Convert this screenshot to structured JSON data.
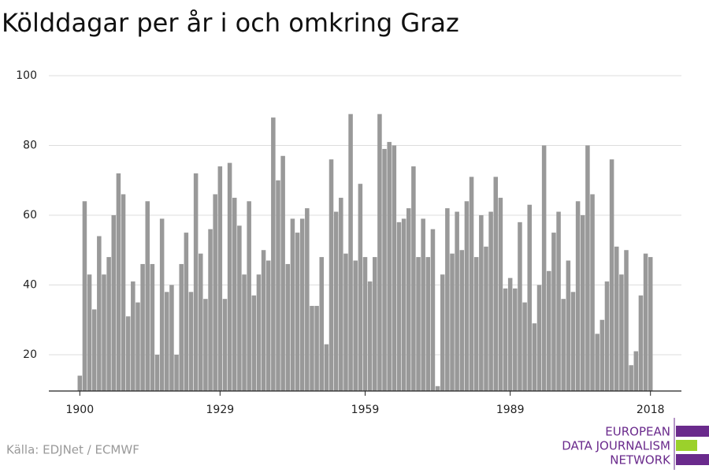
{
  "chart_data": {
    "type": "bar",
    "title": "Kölddagar per år i och omkring Graz",
    "source": "Källa: EDJNet / ECMWF",
    "logo": [
      "EUROPEAN",
      "DATA JOURNALISM",
      "NETWORK"
    ],
    "color": "#999999",
    "x": [
      1900,
      1901,
      1902,
      1903,
      1904,
      1905,
      1906,
      1907,
      1908,
      1909,
      1910,
      1911,
      1912,
      1913,
      1914,
      1915,
      1916,
      1917,
      1918,
      1919,
      1920,
      1921,
      1922,
      1923,
      1924,
      1925,
      1926,
      1927,
      1928,
      1929,
      1930,
      1931,
      1932,
      1933,
      1934,
      1935,
      1936,
      1937,
      1938,
      1939,
      1940,
      1941,
      1942,
      1943,
      1944,
      1945,
      1946,
      1947,
      1948,
      1949,
      1950,
      1951,
      1952,
      1953,
      1954,
      1955,
      1956,
      1957,
      1958,
      1959,
      1960,
      1961,
      1962,
      1963,
      1964,
      1965,
      1966,
      1967,
      1968,
      1969,
      1970,
      1971,
      1972,
      1973,
      1974,
      1975,
      1976,
      1977,
      1978,
      1979,
      1980,
      1981,
      1982,
      1983,
      1984,
      1985,
      1986,
      1987,
      1988,
      1989,
      1990,
      1991,
      1992,
      1993,
      1994,
      1995,
      1996,
      1997,
      1998,
      1999,
      2000,
      2001,
      2002,
      2003,
      2004,
      2005,
      2006,
      2007,
      2008,
      2009,
      2010,
      2011,
      2012,
      2013,
      2014,
      2015,
      2016,
      2017,
      2018
    ],
    "values": [
      14,
      64,
      43,
      33,
      54,
      43,
      48,
      60,
      72,
      66,
      31,
      41,
      35,
      46,
      64,
      46,
      20,
      59,
      38,
      40,
      20,
      46,
      55,
      38,
      72,
      49,
      36,
      56,
      66,
      74,
      36,
      75,
      65,
      57,
      43,
      64,
      37,
      43,
      50,
      47,
      88,
      70,
      77,
      46,
      59,
      55,
      59,
      62,
      34,
      34,
      48,
      23,
      76,
      61,
      65,
      49,
      89,
      47,
      69,
      48,
      41,
      48,
      89,
      79,
      81,
      80,
      58,
      59,
      62,
      74,
      48,
      59,
      48,
      56,
      11,
      43,
      62,
      49,
      61,
      50,
      64,
      71,
      48,
      60,
      51,
      61,
      71,
      65,
      39,
      42,
      39,
      58,
      35,
      63,
      29,
      40,
      80,
      44,
      55,
      61,
      36,
      47,
      38,
      64,
      60,
      80,
      66,
      26,
      30,
      41,
      76,
      51,
      43,
      50,
      17,
      21,
      37,
      49,
      48
    ],
    "xlim": [
      1893.6,
      2024.4
    ],
    "xticks": [
      1900,
      1929,
      1959,
      1989,
      2018
    ],
    "ylim": [
      9.6,
      100
    ],
    "yticks": [
      20,
      40,
      60,
      80,
      100
    ],
    "grid": true
  }
}
